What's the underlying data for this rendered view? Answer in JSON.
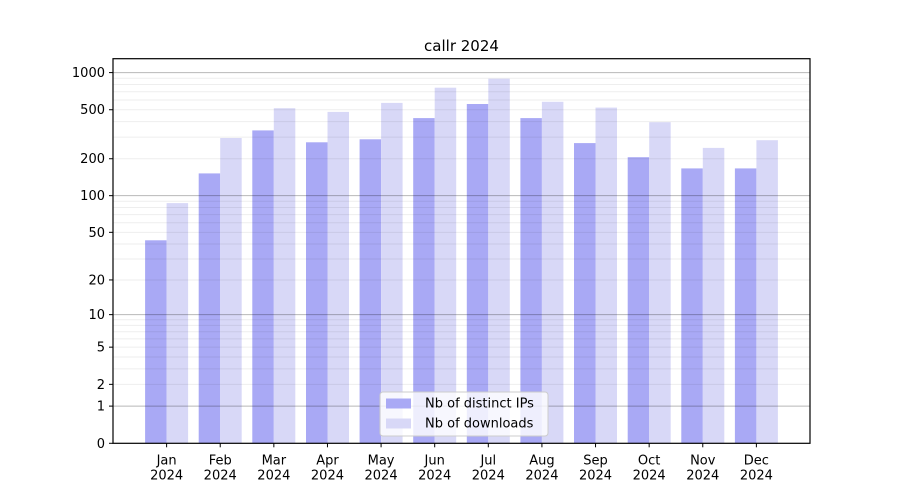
{
  "chart_data": {
    "type": "bar",
    "title": "callr 2024",
    "categories": [
      "Jan",
      "Feb",
      "Mar",
      "Apr",
      "May",
      "Jun",
      "Jul",
      "Aug",
      "Sep",
      "Oct",
      "Nov",
      "Dec"
    ],
    "x_year": "2024",
    "series": [
      {
        "name": "Nb of distinct IPs",
        "color": "#a9a9f5",
        "values": [
          43,
          152,
          340,
          272,
          288,
          428,
          556,
          428,
          268,
          206,
          167,
          167
        ]
      },
      {
        "name": "Nb of downloads",
        "color": "#d8d8f7",
        "values": [
          87,
          295,
          515,
          480,
          568,
          755,
          893,
          580,
          520,
          396,
          245,
          283
        ]
      }
    ],
    "xlabel": "",
    "ylabel": "",
    "y_scale": "log10(1+x)",
    "y_ticks": [
      0,
      1,
      2,
      5,
      10,
      20,
      50,
      100,
      200,
      500,
      1000
    ],
    "ylim": [
      0,
      1300
    ],
    "grid": {
      "major": [
        1,
        10,
        100,
        1000
      ],
      "minor": [
        2,
        3,
        4,
        5,
        6,
        7,
        8,
        9,
        20,
        30,
        40,
        50,
        60,
        70,
        80,
        90,
        200,
        300,
        400,
        500,
        600,
        700,
        800,
        900
      ]
    },
    "legend": {
      "position": "lower-center-inside",
      "labels": [
        "Nb of distinct IPs",
        "Nb of downloads"
      ]
    }
  },
  "colors": {
    "background": "#ffffff",
    "spine": "#000000",
    "major_grid": "rgba(0,0,0,0.28)",
    "minor_grid": "rgba(0,0,0,0.065)",
    "legend_border": "#cccccc",
    "legend_fill": "rgba(255,255,255,0.8)"
  }
}
